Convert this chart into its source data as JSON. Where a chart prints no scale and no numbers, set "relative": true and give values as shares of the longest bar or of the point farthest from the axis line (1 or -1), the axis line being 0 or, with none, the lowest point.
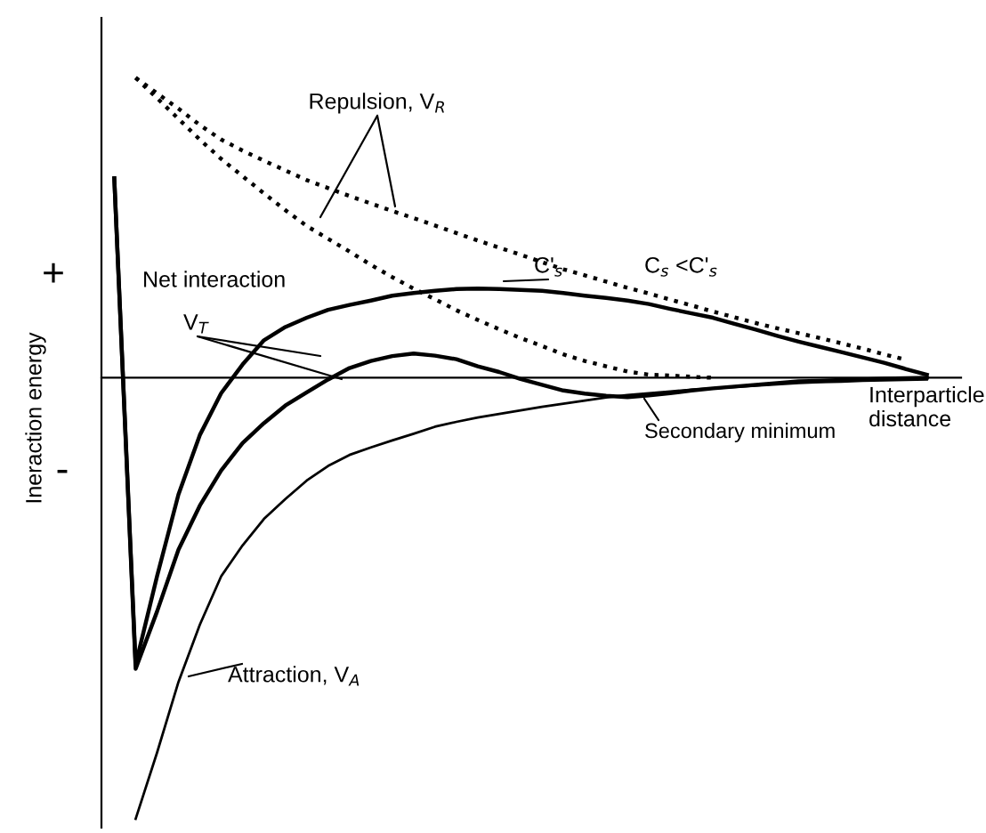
{
  "chart_data": {
    "type": "line",
    "relative": true,
    "ylabel": "Ineraction energy",
    "xlabel": "Interparticle distance",
    "legend": false,
    "marker": "none",
    "categories": [
      null,
      null,
      null,
      null,
      null,
      null,
      null,
      null,
      null,
      null,
      null,
      null,
      null,
      null,
      null,
      null,
      null,
      null,
      null,
      null,
      null,
      null,
      null,
      null,
      null,
      null,
      null,
      null,
      null,
      null,
      null,
      null,
      null,
      null,
      null,
      null,
      null,
      null,
      null
    ],
    "series": [
      {
        "color": "#000000",
        "line_style": "dotted",
        "values": [
          null,
          0.68,
          0.645,
          0.61,
          0.573,
          0.54,
          0.515,
          0.492,
          0.47,
          0.448,
          0.43,
          0.412,
          0.395,
          0.378,
          0.362,
          0.345,
          0.328,
          0.311,
          0.295,
          0.279,
          0.262,
          0.246,
          0.232,
          0.218,
          0.204,
          0.191,
          0.177,
          0.164,
          0.15,
          0.137,
          0.124,
          0.112,
          0.101,
          0.09,
          0.078,
          0.066,
          0.053,
          0.041,
          null
        ]
      },
      {
        "color": "#000000",
        "line_style": "dotted",
        "values": [
          null,
          0.68,
          0.634,
          0.587,
          0.54,
          0.496,
          0.457,
          0.418,
          0.38,
          0.344,
          0.315,
          0.286,
          0.256,
          0.228,
          0.202,
          0.178,
          0.153,
          0.131,
          0.11,
          0.09,
          0.072,
          0.053,
          0.038,
          0.026,
          0.014,
          0.007,
          0.005,
          0.002,
          0,
          null,
          null,
          null,
          null,
          null,
          null,
          null,
          null,
          null,
          null
        ]
      },
      {
        "color": "#000000",
        "line_style": "solid",
        "values": [
          0.452,
          -0.65,
          -0.45,
          -0.265,
          -0.13,
          -0.035,
          0.03,
          0.085,
          0.115,
          0.136,
          0.154,
          0.165,
          0.175,
          0.186,
          0.192,
          0.197,
          0.201,
          0.202,
          0.201,
          0.199,
          0.197,
          0.192,
          0.186,
          0.181,
          0.175,
          0.167,
          0.156,
          0.146,
          0.136,
          0.122,
          0.109,
          0.095,
          0.082,
          0.07,
          0.058,
          0.046,
          0.034,
          0.02,
          0.007
        ]
      },
      {
        "color": "#000000",
        "line_style": "solid",
        "values": [
          0.452,
          -0.66,
          -0.53,
          -0.39,
          -0.29,
          -0.21,
          -0.148,
          -0.103,
          -0.063,
          -0.033,
          -0.004,
          0.022,
          0.038,
          0.049,
          0.055,
          0.05,
          0.042,
          0.026,
          0.013,
          -0.003,
          -0.016,
          -0.029,
          -0.036,
          -0.041,
          -0.044,
          -0.04,
          -0.035,
          -0.029,
          -0.024,
          -0.02,
          -0.016,
          -0.012,
          -0.008,
          -0.007,
          -0.005,
          -0.004,
          -0.002,
          -0.001,
          0
        ]
      },
      {
        "color": "#000000",
        "line_style": "solid",
        "values": [
          null,
          -1.0,
          -0.85,
          -0.69,
          -0.56,
          -0.45,
          -0.38,
          -0.32,
          -0.275,
          -0.233,
          -0.2,
          -0.175,
          -0.158,
          -0.142,
          -0.127,
          -0.111,
          -0.1,
          -0.09,
          -0.082,
          -0.074,
          -0.066,
          -0.059,
          -0.052,
          -0.045,
          -0.039,
          -0.035,
          -0.031,
          -0.027,
          -0.024,
          -0.021,
          -0.018,
          -0.015,
          -0.012,
          -0.01,
          -0.009,
          -0.007,
          -0.006,
          -0.005,
          -0.004
        ]
      }
    ],
    "annotations": [
      "Repulsion, V$_{R}$",
      "C$_{s}$ <C'$_{s}$",
      "C'$_{s}$",
      "Net interaction",
      "V$_{T}$",
      "Secondary minimum",
      "Attraction, V$_{A}$",
      "+",
      "-"
    ]
  }
}
